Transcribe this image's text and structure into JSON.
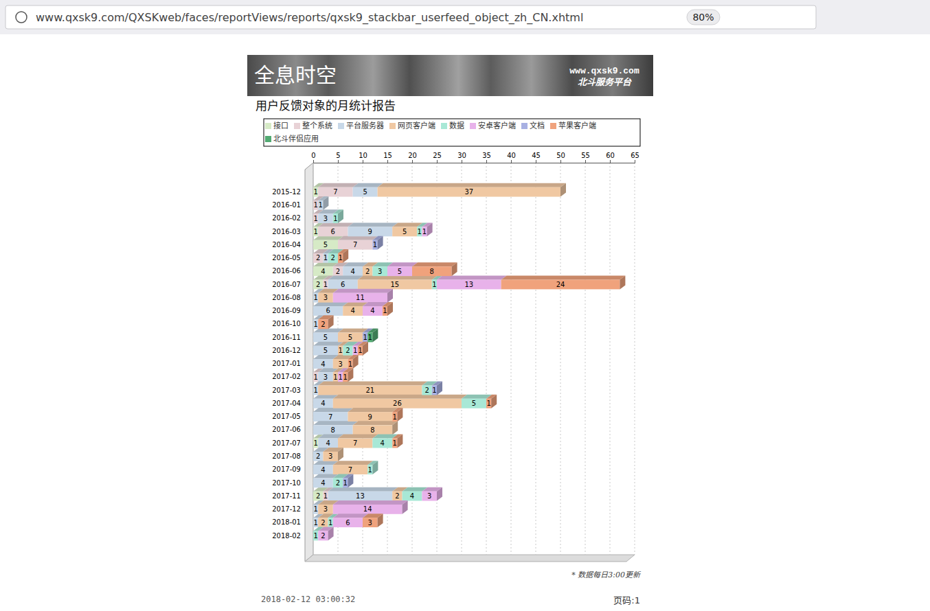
{
  "page": {
    "browser": {
      "url": "www.qxsk9.com/QXSKweb/faces/reportViews/reports/qxsk9_stackbar_userfeed_object_zh_CN.xhtml",
      "zoom": "80%"
    },
    "banner": {
      "title": "全息时空",
      "site": "www.qxsk9.com",
      "subtitle": "北斗服务平台"
    },
    "note": "* 数据每日3:00更新",
    "timestamp": "2018-02-12 03:00:32",
    "page_label": "页码:1"
  },
  "chart_data": {
    "type": "bar",
    "title": "用户反馈对象的月统计报告",
    "orientation": "horizontal",
    "stacked": true,
    "data_labels": true,
    "grid": true,
    "legend": "top",
    "categories": [
      "2015-12",
      "2016-01",
      "2016-02",
      "2016-03",
      "2016-04",
      "2016-05",
      "2016-06",
      "2016-07",
      "2016-08",
      "2016-09",
      "2016-10",
      "2016-11",
      "2016-12",
      "2017-01",
      "2017-02",
      "2017-03",
      "2017-04",
      "2017-05",
      "2017-06",
      "2017-07",
      "2017-08",
      "2017-09",
      "2017-10",
      "2017-11",
      "2017-12",
      "2018-01",
      "2018-02"
    ],
    "series": [
      {
        "name": "接口",
        "color": "#d6eac6",
        "values": [
          1,
          0,
          0,
          1,
          5,
          0,
          4,
          2,
          0,
          0,
          0,
          0,
          0,
          0,
          0,
          0,
          0,
          0,
          0,
          1,
          0,
          0,
          0,
          2,
          0,
          0,
          0
        ]
      },
      {
        "name": "整个系统",
        "color": "#e8d2d6",
        "values": [
          7,
          1,
          1,
          6,
          7,
          2,
          2,
          1,
          0,
          0,
          0,
          0,
          0,
          0,
          1,
          0,
          0,
          0,
          0,
          0,
          0,
          0,
          0,
          1,
          0,
          0,
          0
        ]
      },
      {
        "name": "平台服务器",
        "color": "#c8d8e8",
        "values": [
          5,
          1,
          3,
          9,
          0,
          1,
          4,
          6,
          1,
          6,
          1,
          5,
          5,
          4,
          3,
          1,
          4,
          7,
          8,
          4,
          2,
          4,
          4,
          13,
          1,
          1,
          0
        ]
      },
      {
        "name": "网页客户端",
        "color": "#f0c8a2",
        "values": [
          37,
          0,
          0,
          5,
          0,
          0,
          2,
          15,
          3,
          4,
          0,
          5,
          1,
          3,
          1,
          21,
          26,
          9,
          8,
          7,
          3,
          7,
          0,
          2,
          3,
          2,
          0
        ]
      },
      {
        "name": "数据",
        "color": "#a8e8d6",
        "values": [
          0,
          0,
          1,
          1,
          0,
          2,
          3,
          1,
          0,
          0,
          0,
          0,
          2,
          0,
          0,
          2,
          5,
          0,
          0,
          4,
          0,
          1,
          2,
          4,
          0,
          1,
          1
        ]
      },
      {
        "name": "安卓客户端",
        "color": "#e8b2ea",
        "values": [
          0,
          0,
          0,
          1,
          0,
          0,
          5,
          13,
          11,
          4,
          0,
          0,
          1,
          0,
          1,
          0,
          0,
          0,
          0,
          0,
          0,
          0,
          0,
          3,
          14,
          6,
          2
        ]
      },
      {
        "name": "文档",
        "color": "#a8b0e2",
        "values": [
          0,
          0,
          0,
          0,
          1,
          0,
          0,
          0,
          0,
          0,
          0,
          1,
          0,
          0,
          0,
          1,
          0,
          0,
          0,
          0,
          0,
          0,
          1,
          0,
          0,
          0,
          0
        ]
      },
      {
        "name": "苹果客户端",
        "color": "#f0a27c",
        "values": [
          0,
          0,
          0,
          0,
          0,
          1,
          8,
          24,
          0,
          1,
          2,
          0,
          1,
          1,
          1,
          0,
          1,
          1,
          0,
          1,
          0,
          0,
          0,
          0,
          0,
          3,
          0
        ]
      },
      {
        "name": "北斗伴侣应用",
        "color": "#52aa72",
        "values": [
          0,
          0,
          0,
          0,
          0,
          0,
          0,
          0,
          0,
          0,
          0,
          1,
          0,
          0,
          0,
          0,
          0,
          0,
          0,
          0,
          0,
          0,
          0,
          0,
          0,
          0,
          0
        ]
      }
    ],
    "xlim": [
      0,
      65
    ],
    "xticks": [
      0,
      5,
      10,
      15,
      20,
      25,
      30,
      35,
      40,
      45,
      50,
      55,
      60,
      65
    ]
  }
}
